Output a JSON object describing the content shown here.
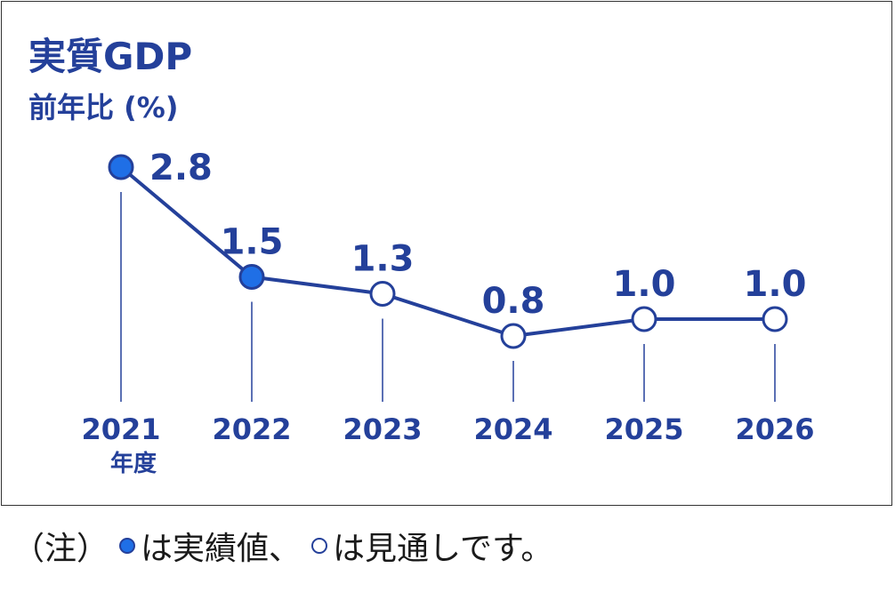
{
  "chart_data": {
    "type": "line",
    "title": "実質GDP",
    "ylabel": "前年比 (%)",
    "x": [
      "2021",
      "2022",
      "2023",
      "2024",
      "2025",
      "2026"
    ],
    "x_unit": "年度",
    "values": [
      2.8,
      1.5,
      1.3,
      0.8,
      1.0,
      1.0
    ],
    "value_labels": [
      "2.8",
      "1.5",
      "1.3",
      "0.8",
      "1.0",
      "1.0"
    ],
    "marker_types": [
      "actual",
      "actual",
      "forecast",
      "forecast",
      "forecast",
      "forecast"
    ],
    "ylim": [
      -0.8,
      3.2
    ],
    "grid": false,
    "colors": {
      "line": "#24409a",
      "actual_fill": "#1f6fe6",
      "forecast_fill": "#ffffff",
      "text": "#24409a",
      "guide": "#24409a"
    }
  },
  "note": {
    "prefix": "（注）",
    "actual_text": "は実績値、",
    "forecast_text": "は見通しです。"
  }
}
